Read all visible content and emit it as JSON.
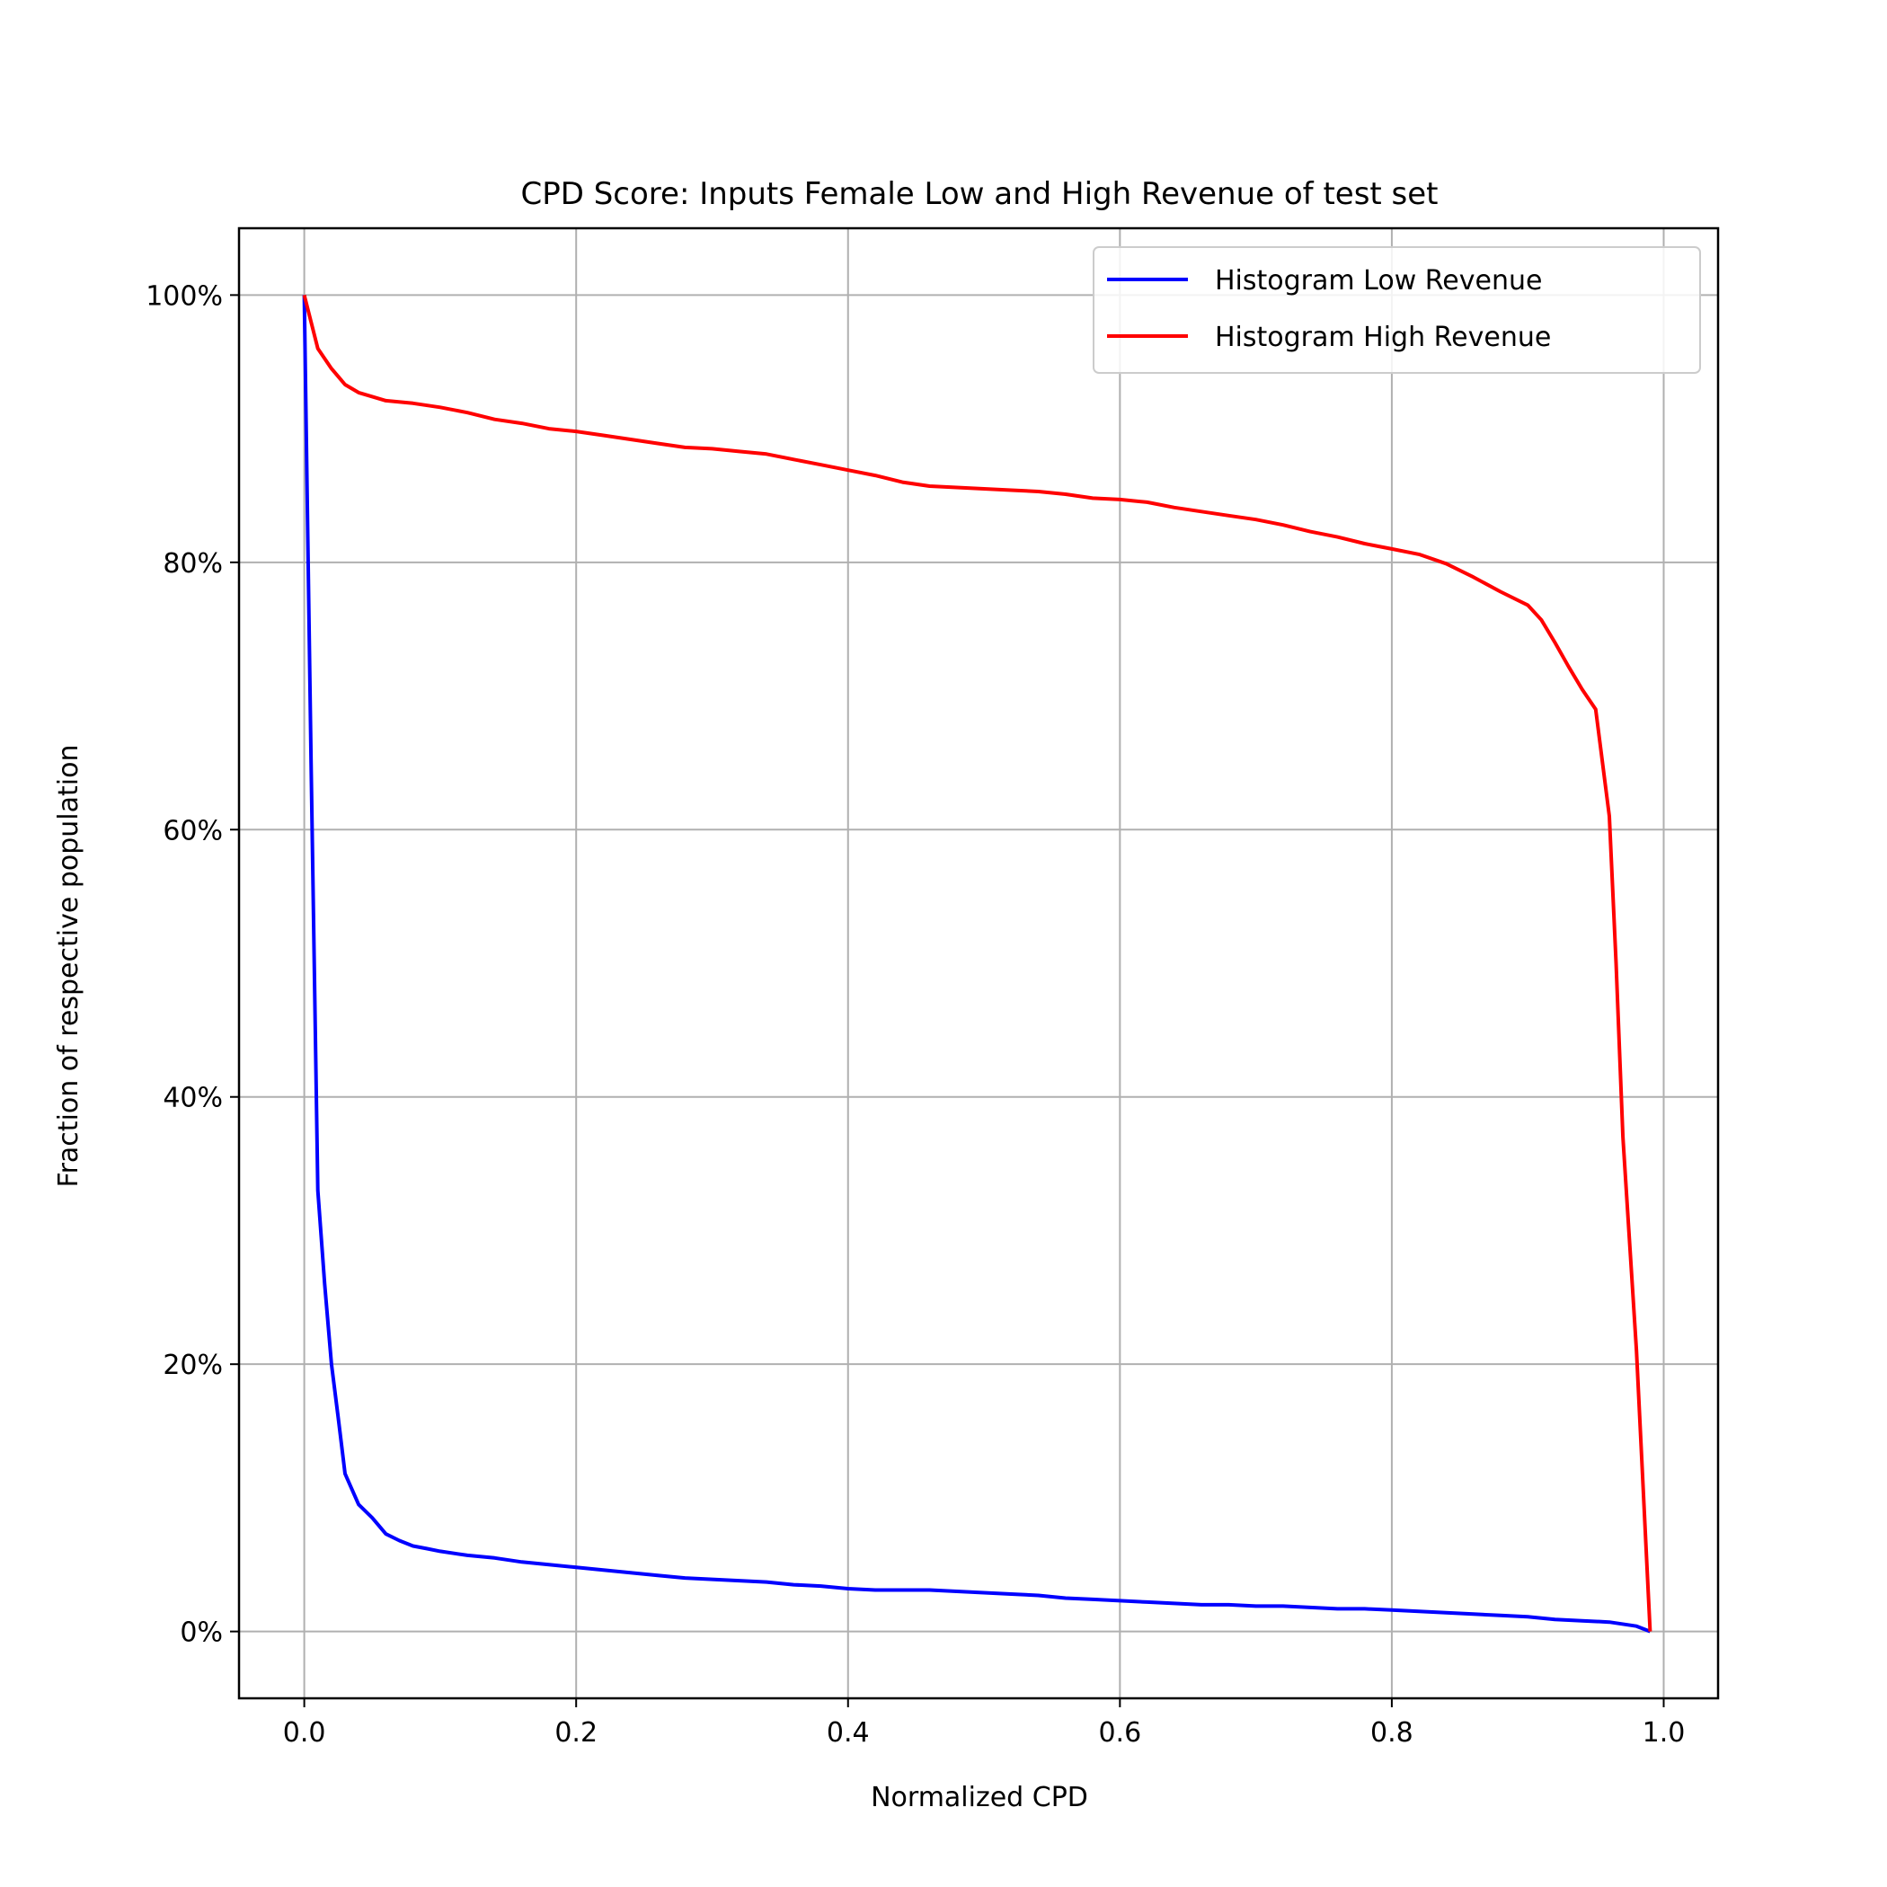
{
  "chart_data": {
    "type": "line",
    "title": "CPD Score: Inputs Female Low and High Revenue of test set",
    "xlabel": "Normalized CPD",
    "ylabel": "Fraction of respective population",
    "xlim": [
      -0.048,
      1.04
    ],
    "ylim": [
      -0.05,
      1.05
    ],
    "x_ticks": [
      0.0,
      0.2,
      0.4,
      0.6,
      0.8,
      1.0
    ],
    "x_tick_labels": [
      "0.0",
      "0.2",
      "0.4",
      "0.6",
      "0.8",
      "1.0"
    ],
    "y_ticks": [
      0.0,
      0.2,
      0.4,
      0.6,
      0.8,
      1.0
    ],
    "y_tick_labels": [
      "0%",
      "20%",
      "40%",
      "60%",
      "80%",
      "100%"
    ],
    "grid": true,
    "legend_position": "top-right",
    "series": [
      {
        "name": "Histogram Low Revenue",
        "color": "#0000ff",
        "x": [
          0.0,
          0.005,
          0.01,
          0.015,
          0.02,
          0.025,
          0.03,
          0.04,
          0.05,
          0.06,
          0.07,
          0.08,
          0.09,
          0.1,
          0.12,
          0.14,
          0.16,
          0.18,
          0.2,
          0.22,
          0.24,
          0.26,
          0.28,
          0.3,
          0.32,
          0.34,
          0.36,
          0.38,
          0.4,
          0.42,
          0.44,
          0.46,
          0.48,
          0.5,
          0.52,
          0.54,
          0.56,
          0.58,
          0.6,
          0.62,
          0.64,
          0.66,
          0.68,
          0.7,
          0.72,
          0.74,
          0.76,
          0.78,
          0.8,
          0.82,
          0.84,
          0.86,
          0.88,
          0.9,
          0.92,
          0.94,
          0.96,
          0.98,
          0.99
        ],
        "y": [
          1.0,
          0.65,
          0.33,
          0.26,
          0.2,
          0.16,
          0.118,
          0.095,
          0.085,
          0.073,
          0.068,
          0.064,
          0.062,
          0.06,
          0.057,
          0.055,
          0.052,
          0.05,
          0.048,
          0.046,
          0.044,
          0.042,
          0.04,
          0.039,
          0.038,
          0.037,
          0.035,
          0.034,
          0.032,
          0.031,
          0.031,
          0.031,
          0.03,
          0.029,
          0.028,
          0.027,
          0.025,
          0.024,
          0.023,
          0.022,
          0.021,
          0.02,
          0.02,
          0.019,
          0.019,
          0.018,
          0.017,
          0.017,
          0.016,
          0.015,
          0.014,
          0.013,
          0.012,
          0.011,
          0.009,
          0.008,
          0.007,
          0.004,
          0.0
        ]
      },
      {
        "name": "Histogram High Revenue",
        "color": "#ff0000",
        "x": [
          0.0,
          0.01,
          0.02,
          0.03,
          0.04,
          0.05,
          0.06,
          0.08,
          0.1,
          0.12,
          0.14,
          0.16,
          0.18,
          0.2,
          0.22,
          0.24,
          0.26,
          0.28,
          0.3,
          0.32,
          0.34,
          0.36,
          0.38,
          0.4,
          0.42,
          0.44,
          0.46,
          0.48,
          0.5,
          0.52,
          0.54,
          0.56,
          0.58,
          0.6,
          0.62,
          0.64,
          0.66,
          0.68,
          0.7,
          0.72,
          0.74,
          0.76,
          0.78,
          0.8,
          0.82,
          0.84,
          0.86,
          0.88,
          0.9,
          0.91,
          0.92,
          0.93,
          0.94,
          0.95,
          0.96,
          0.965,
          0.97,
          0.98,
          0.99
        ],
        "y": [
          1.0,
          0.96,
          0.945,
          0.933,
          0.927,
          0.924,
          0.921,
          0.919,
          0.916,
          0.912,
          0.907,
          0.904,
          0.9,
          0.898,
          0.895,
          0.892,
          0.889,
          0.886,
          0.885,
          0.883,
          0.881,
          0.877,
          0.873,
          0.869,
          0.865,
          0.86,
          0.857,
          0.856,
          0.855,
          0.854,
          0.853,
          0.851,
          0.848,
          0.847,
          0.845,
          0.841,
          0.838,
          0.835,
          0.832,
          0.828,
          0.823,
          0.819,
          0.814,
          0.81,
          0.806,
          0.799,
          0.789,
          0.778,
          0.768,
          0.757,
          0.74,
          0.722,
          0.705,
          0.69,
          0.61,
          0.5,
          0.37,
          0.21,
          0.0
        ]
      }
    ]
  }
}
